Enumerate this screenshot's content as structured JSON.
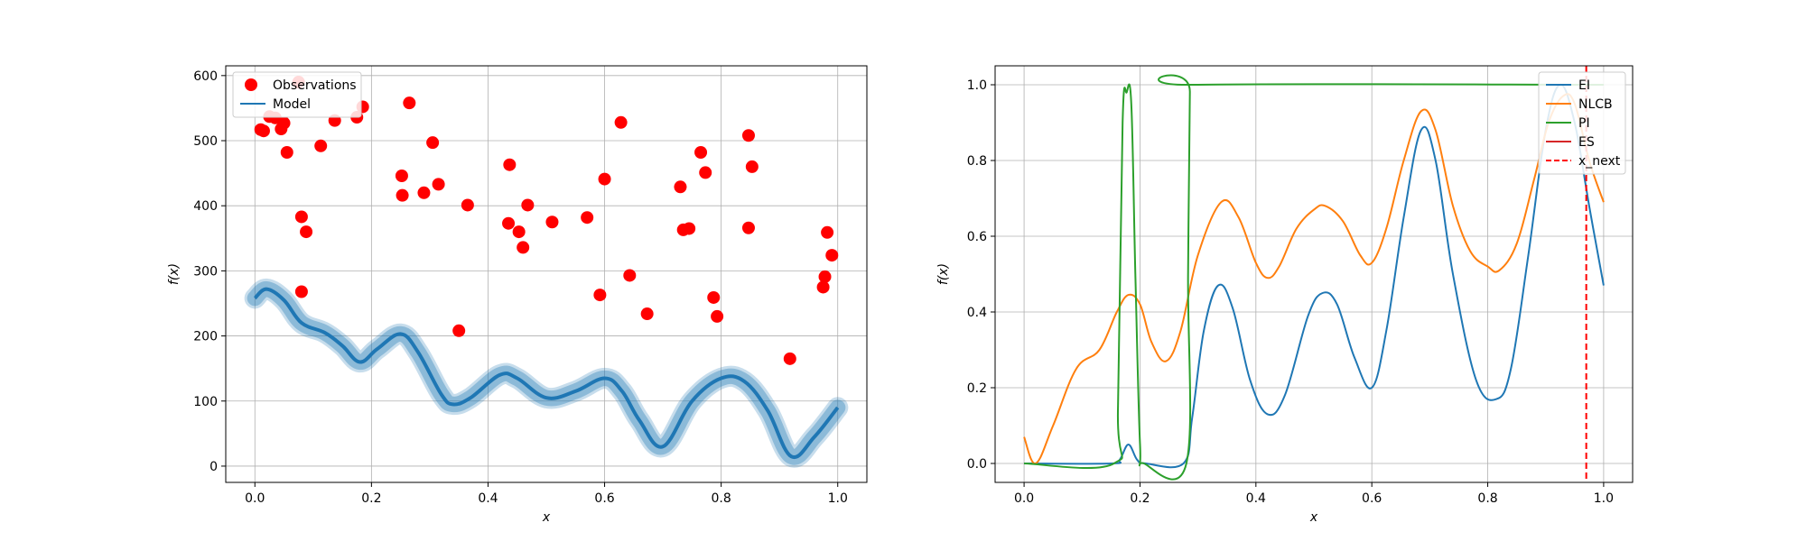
{
  "chart_data": [
    {
      "type": "scatter",
      "xlabel": "x",
      "ylabel": "f(x)",
      "xlim": [
        -0.05,
        1.05
      ],
      "ylim": [
        -25,
        615
      ],
      "xticks": [
        "0.0",
        "0.2",
        "0.4",
        "0.6",
        "0.8",
        "1.0"
      ],
      "yticks": [
        "0",
        "100",
        "200",
        "300",
        "400",
        "500",
        "600"
      ],
      "grid": true,
      "legend": {
        "placement": "top-left",
        "entries": [
          "Observations",
          "Model"
        ]
      },
      "series": [
        {
          "name": "Observations",
          "kind": "scatter",
          "color": "#ff0000",
          "points": [
            [
              0.01,
              517
            ],
            [
              0.015,
              515
            ],
            [
              0.025,
              537
            ],
            [
              0.035,
              535
            ],
            [
              0.045,
              518
            ],
            [
              0.05,
              527
            ],
            [
              0.055,
              482
            ],
            [
              0.075,
              590
            ],
            [
              0.08,
              383
            ],
            [
              0.08,
              268
            ],
            [
              0.088,
              360
            ],
            [
              0.113,
              492
            ],
            [
              0.137,
              531
            ],
            [
              0.175,
              536
            ],
            [
              0.185,
              552
            ],
            [
              0.252,
              446
            ],
            [
              0.253,
              416
            ],
            [
              0.265,
              558
            ],
            [
              0.29,
              420
            ],
            [
              0.305,
              497
            ],
            [
              0.315,
              433
            ],
            [
              0.35,
              208
            ],
            [
              0.365,
              401
            ],
            [
              0.435,
              373
            ],
            [
              0.437,
              463
            ],
            [
              0.453,
              360
            ],
            [
              0.46,
              336
            ],
            [
              0.468,
              401
            ],
            [
              0.51,
              375
            ],
            [
              0.57,
              382
            ],
            [
              0.592,
              263
            ],
            [
              0.6,
              441
            ],
            [
              0.628,
              528
            ],
            [
              0.643,
              293
            ],
            [
              0.673,
              234
            ],
            [
              0.73,
              429
            ],
            [
              0.735,
              363
            ],
            [
              0.745,
              365
            ],
            [
              0.765,
              482
            ],
            [
              0.773,
              451
            ],
            [
              0.787,
              259
            ],
            [
              0.793,
              230
            ],
            [
              0.847,
              508
            ],
            [
              0.847,
              366
            ],
            [
              0.853,
              460
            ],
            [
              0.918,
              165
            ],
            [
              0.975,
              275
            ],
            [
              0.978,
              291
            ],
            [
              0.982,
              359
            ],
            [
              0.99,
              324
            ]
          ]
        },
        {
          "name": "Model",
          "kind": "line",
          "color": "#1f77b4",
          "x": [
            0.0,
            0.02,
            0.05,
            0.08,
            0.12,
            0.15,
            0.18,
            0.21,
            0.25,
            0.28,
            0.32,
            0.34,
            0.37,
            0.42,
            0.45,
            0.5,
            0.55,
            0.6,
            0.63,
            0.66,
            0.7,
            0.75,
            0.8,
            0.84,
            0.88,
            0.92,
            0.96,
            1.0
          ],
          "y": [
            258,
            272,
            255,
            220,
            205,
            185,
            160,
            180,
            203,
            175,
            110,
            95,
            105,
            140,
            135,
            105,
            115,
            135,
            115,
            70,
            30,
            100,
            135,
            130,
            85,
            15,
            45,
            90
          ],
          "band_halfwidth": 12
        }
      ]
    },
    {
      "type": "line",
      "xlabel": "x",
      "ylabel": "f(x)",
      "xlim": [
        -0.05,
        1.05
      ],
      "ylim": [
        -0.05,
        1.05
      ],
      "xticks": [
        "0.0",
        "0.2",
        "0.4",
        "0.6",
        "0.8",
        "1.0"
      ],
      "yticks": [
        "0.0",
        "0.2",
        "0.4",
        "0.6",
        "0.8",
        "1.0"
      ],
      "grid": true,
      "legend": {
        "placement": "top-right",
        "entries": [
          "EI",
          "NLCB",
          "PI",
          "ES",
          "x_next"
        ]
      },
      "series": [
        {
          "name": "EI",
          "color": "#1f77b4",
          "x": [
            0.0,
            0.15,
            0.165,
            0.18,
            0.195,
            0.21,
            0.275,
            0.29,
            0.31,
            0.335,
            0.36,
            0.39,
            0.42,
            0.45,
            0.49,
            0.515,
            0.54,
            0.57,
            0.6,
            0.625,
            0.655,
            0.685,
            0.71,
            0.74,
            0.78,
            0.815,
            0.84,
            0.87,
            0.9,
            0.925,
            0.95,
            0.975,
            1.0
          ],
          "y": [
            0,
            0,
            0.01,
            0.05,
            0.01,
            0,
            0,
            0.12,
            0.35,
            0.47,
            0.41,
            0.22,
            0.13,
            0.18,
            0.39,
            0.45,
            0.42,
            0.28,
            0.2,
            0.35,
            0.65,
            0.88,
            0.8,
            0.5,
            0.22,
            0.17,
            0.25,
            0.55,
            0.88,
            1.0,
            0.9,
            0.68,
            0.47
          ]
        },
        {
          "name": "NLCB",
          "color": "#ff7f0e",
          "x": [
            0.0,
            0.02,
            0.05,
            0.09,
            0.13,
            0.16,
            0.18,
            0.2,
            0.22,
            0.245,
            0.27,
            0.3,
            0.34,
            0.37,
            0.4,
            0.42,
            0.44,
            0.47,
            0.5,
            0.52,
            0.55,
            0.58,
            0.6,
            0.625,
            0.655,
            0.685,
            0.71,
            0.74,
            0.77,
            0.8,
            0.82,
            0.85,
            0.88,
            0.905,
            0.93,
            0.95,
            0.975,
            1.0
          ],
          "y": [
            0.07,
            0.0,
            0.1,
            0.25,
            0.3,
            0.4,
            0.445,
            0.42,
            0.32,
            0.27,
            0.35,
            0.55,
            0.69,
            0.65,
            0.53,
            0.49,
            0.52,
            0.62,
            0.67,
            0.68,
            0.64,
            0.55,
            0.53,
            0.62,
            0.8,
            0.93,
            0.88,
            0.68,
            0.56,
            0.52,
            0.51,
            0.58,
            0.75,
            0.9,
            0.97,
            0.95,
            0.8,
            0.69
          ]
        },
        {
          "name": "PI",
          "color": "#2ca02c",
          "x": [
            0.0,
            0.155,
            0.162,
            0.17,
            0.177,
            0.185,
            0.192,
            0.2,
            0.207,
            0.28,
            0.283,
            0.286,
            0.29,
            1.0
          ],
          "y": [
            0,
            0,
            0.15,
            0.9,
            0.98,
            0.95,
            0.5,
            0.05,
            0,
            0,
            0.5,
            0.98,
            1.0,
            1.0
          ]
        },
        {
          "name": "ES",
          "color": "#d62728",
          "x": [],
          "y": []
        }
      ],
      "vline": {
        "name": "x_next",
        "x": 0.97,
        "color": "#ff0000",
        "style": "dashed"
      }
    }
  ]
}
